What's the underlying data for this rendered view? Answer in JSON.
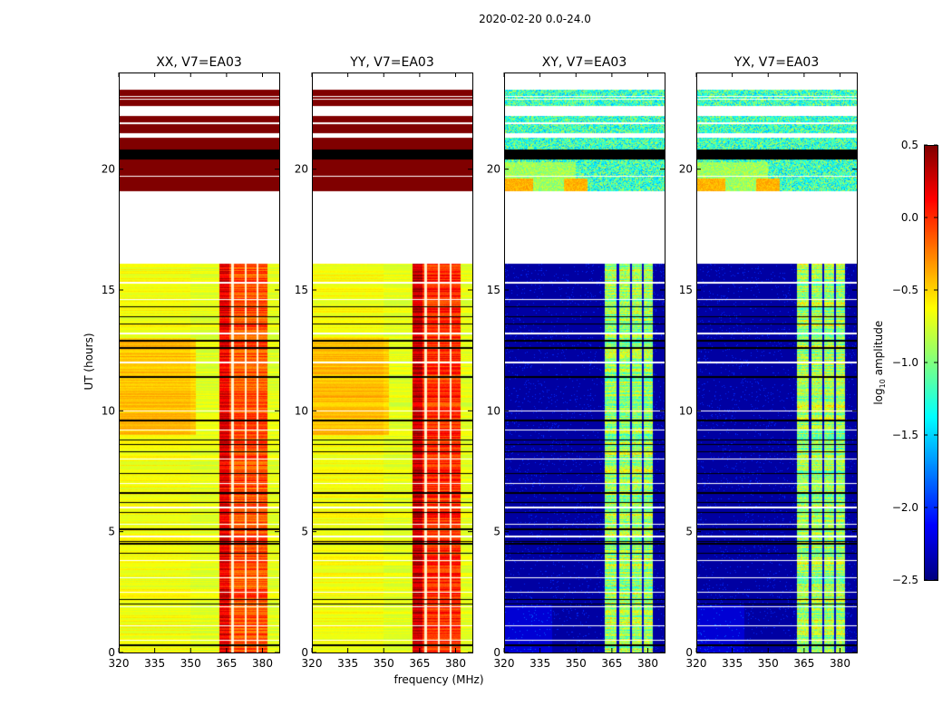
{
  "chart_data": {
    "type": "heatmap",
    "title": "2020-02-20 0.0-24.0",
    "xlabel": "frequency (MHz)",
    "ylabel": "UT (hours)",
    "xlim": [
      320,
      387
    ],
    "ylim": [
      0,
      24
    ],
    "xticks": [
      "320",
      "335",
      "350",
      "365",
      "380"
    ],
    "xtick_values": [
      320,
      335,
      350,
      365,
      380
    ],
    "yticks": [
      "0",
      "5",
      "10",
      "15",
      "20"
    ],
    "ytick_values": [
      0,
      5,
      10,
      15,
      20
    ],
    "colorbar": {
      "label_main": "log",
      "label_sub": "10",
      "label_rest": " amplitude",
      "range": [
        -2.5,
        0.5
      ],
      "ticks": [
        "0.5",
        "0.0",
        "−0.5",
        "−1.0",
        "−1.5",
        "−2.0",
        "−2.5"
      ],
      "tick_values": [
        0.5,
        0.0,
        -0.5,
        -1.0,
        -1.5,
        -2.0,
        -2.5
      ],
      "colormap": "jet"
    },
    "panels": [
      {
        "title": "XX, V7=EA03",
        "kind": "auto"
      },
      {
        "title": "YY, V7=EA03",
        "kind": "auto"
      },
      {
        "title": "XY, V7=EA03",
        "kind": "cross"
      },
      {
        "title": "YX, V7=EA03",
        "kind": "cross"
      }
    ],
    "flagged_time_ranges_hours": [
      [
        16.1,
        19.1
      ],
      [
        23.3,
        24.0
      ],
      [
        22.2,
        22.6
      ],
      [
        21.3,
        21.5
      ]
    ],
    "dark_time_ranges_hours": [
      [
        20.4,
        20.8
      ]
    ],
    "flagged_rows_hours": [
      0.5,
      1.1,
      1.9,
      2.5,
      3.1,
      3.8,
      4.8,
      5.3,
      6.0,
      7.0,
      8.0,
      9.2,
      10.0,
      12.0,
      13.2,
      14.6,
      15.3,
      22.9,
      23.0,
      21.9,
      19.7
    ],
    "dark_rows_hours": [
      0.3,
      2.0,
      2.2,
      4.1,
      4.5,
      4.6,
      5.1,
      5.8,
      6.2,
      6.6,
      7.4,
      8.3,
      8.6,
      8.8,
      9.6,
      11.4,
      12.6,
      12.9,
      13.6,
      13.9,
      14.3
    ],
    "strong_band_mhz": [
      362,
      382
    ],
    "band_gap_lines_mhz": [
      367.5,
      373,
      378
    ],
    "typical_levels": {
      "auto_low_band": -0.65,
      "auto_strong_band": -0.1,
      "auto_19_23h": 0.5,
      "cross_low_band": -2.4,
      "cross_strong_band": -0.9,
      "cross_19_23h": -1.2
    }
  }
}
